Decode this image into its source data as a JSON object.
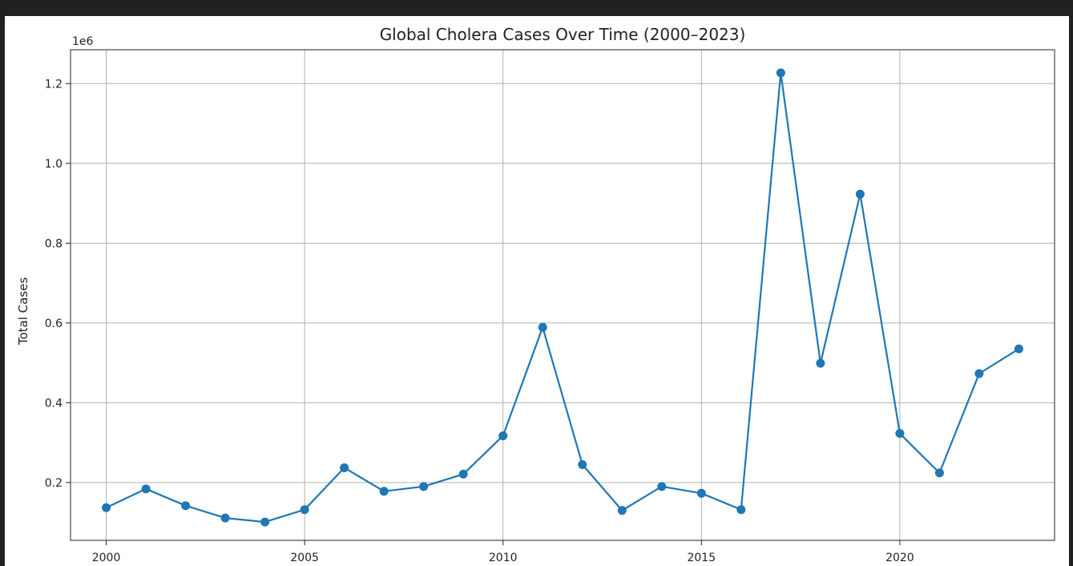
{
  "chart_data": {
    "type": "line",
    "title": "Global Cholera Cases Over Time (2000–2023)",
    "xlabel": "",
    "ylabel": "Total Cases",
    "y_offset_label": "1e6",
    "x": [
      2000,
      2001,
      2002,
      2003,
      2004,
      2005,
      2006,
      2007,
      2008,
      2009,
      2010,
      2011,
      2012,
      2013,
      2014,
      2015,
      2016,
      2017,
      2018,
      2019,
      2020,
      2021,
      2022,
      2023
    ],
    "series": [
      {
        "name": "",
        "values": [
          137000,
          184000,
          142000,
          111000,
          101000,
          132000,
          237000,
          178000,
          190000,
          221000,
          317000,
          589000,
          245000,
          130000,
          190000,
          173000,
          132000,
          1227000,
          499000,
          923000,
          323000,
          224000,
          473000,
          535000
        ],
        "color": "#1f77b4"
      }
    ],
    "xlim": [
      1999.1,
      2023.9
    ],
    "ylim": [
      55000,
      1285000
    ],
    "xticks": [
      2000,
      2005,
      2010,
      2015,
      2020
    ],
    "yticks": [
      0.2,
      0.4,
      0.6,
      0.8,
      1.0,
      1.2
    ],
    "ytick_labels": [
      "0.2",
      "0.4",
      "0.6",
      "0.8",
      "1.0",
      "1.2"
    ],
    "grid": true,
    "marker": "circle"
  }
}
